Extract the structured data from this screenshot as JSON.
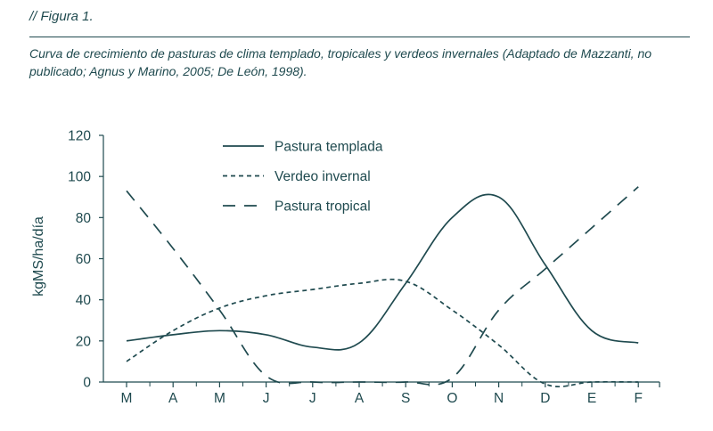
{
  "figure": {
    "label": "// Figura 1.",
    "caption": "Curva de crecimiento de pasturas de clima templado, tropicales y verdeos invernales (Adaptado de Mazzanti, no publicado; Agnus y Marino, 2005; De León, 1998)."
  },
  "colors": {
    "ink": "#1f4a4f"
  },
  "chart_data": {
    "type": "line",
    "title": "",
    "xlabel": "",
    "ylabel": "kgMS/ha/día",
    "ylim": [
      0,
      120
    ],
    "yticks": [
      0,
      20,
      40,
      60,
      80,
      100,
      120
    ],
    "categories": [
      "M",
      "A",
      "M",
      "J",
      "J",
      "A",
      "S",
      "O",
      "N",
      "D",
      "E",
      "F"
    ],
    "grid": false,
    "legend_position": "top-center",
    "series": [
      {
        "name": "Pastura templada",
        "style": "solid",
        "values": [
          20,
          23,
          25,
          23,
          17,
          19,
          48,
          80,
          90,
          57,
          25,
          19
        ]
      },
      {
        "name": "Verdeo invernal",
        "style": "short-dash",
        "values": [
          10,
          25,
          36,
          42,
          45,
          48,
          49,
          35,
          18,
          -1,
          0,
          0
        ]
      },
      {
        "name": "Pastura tropical",
        "style": "long-dash",
        "values": [
          93,
          65,
          35,
          3,
          0,
          0,
          0,
          2,
          35,
          55,
          75,
          95
        ]
      }
    ]
  }
}
